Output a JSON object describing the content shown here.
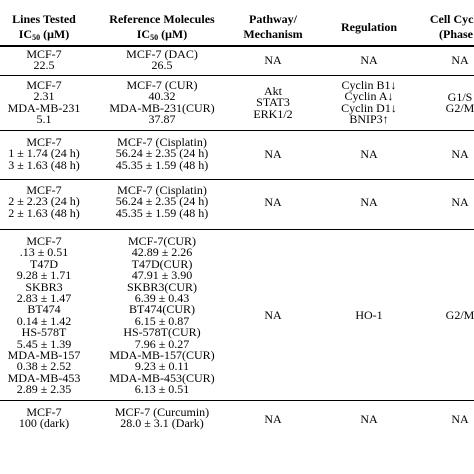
{
  "header": {
    "lines_tested": [
      "Lines Tested",
      "IC50 (μM)"
    ],
    "reference": [
      "Reference Molecules",
      "IC50 (μM)"
    ],
    "pathway": [
      "Pathway/",
      "Mechanism"
    ],
    "regulation": [
      "Regulation"
    ],
    "cell_cycle": [
      "Cell Cycle",
      "(Phase"
    ]
  },
  "rows": [
    {
      "lines": [
        "MCF-7",
        "22.5"
      ],
      "reference": [
        "MCF-7 (DAC)",
        "26.5"
      ],
      "pathway": [
        "NA"
      ],
      "regulation": [
        "NA"
      ],
      "cell_cycle": [
        "NA"
      ]
    },
    {
      "lines": [
        "MCF-7",
        "2.31",
        "MDA-MB-231",
        "5.1"
      ],
      "reference": [
        "MCF-7 (CUR)",
        "40.32",
        "MDA-MB-231(CUR)",
        "37.87"
      ],
      "pathway": [
        "Akt",
        "STAT3",
        "ERK1/2"
      ],
      "regulation": [
        "Cyclin B1↓",
        "Cyclin A↓",
        "Cyclin D1↓",
        "BNIP3↑"
      ],
      "cell_cycle": [
        "G1/S",
        "G2/M"
      ]
    },
    {
      "lines": [
        "MCF-7",
        "1 ± 1.74 (24 h)",
        "3 ± 1.63 (48 h)"
      ],
      "reference": [
        "MCF-7 (Cisplatin)",
        "56.24 ± 2.35 (24 h)",
        "45.35 ± 1.59 (48 h)"
      ],
      "pathway": [
        "NA"
      ],
      "regulation": [
        "NA"
      ],
      "cell_cycle": [
        "NA"
      ]
    },
    {
      "lines": [
        "MCF-7",
        "2 ± 2.23 (24 h)",
        "2 ± 1.63 (48 h)"
      ],
      "reference": [
        "MCF-7 (Cisplatin)",
        "56.24 ± 2.35 (24 h)",
        "45.35 ± 1.59 (48 h)"
      ],
      "pathway": [
        "NA"
      ],
      "regulation": [
        "NA"
      ],
      "cell_cycle": [
        "NA"
      ]
    },
    {
      "lines": [
        "MCF-7",
        ".13 ± 0.51",
        "T47D",
        "9.28 ± 1.71",
        "SKBR3",
        "2.83 ± 1.47",
        "BT474",
        "0.14 ± 1.42",
        "HS-578T",
        "5.45 ± 1.39",
        "MDA-MB-157",
        "0.38 ± 2.52",
        "MDA-MB-453",
        "2.89 ± 2.35"
      ],
      "reference": [
        "MCF-7(CUR)",
        "42.89 ± 2.26",
        "T47D(CUR)",
        "47.91 ± 3.90",
        "SKBR3(CUR)",
        "6.39 ± 0.43",
        "BT474(CUR)",
        "6.15 ± 0.87",
        "HS-578T(CUR)",
        "7.96 ± 0.27",
        "MDA-MB-157(CUR)",
        "9.23 ± 0.11",
        "MDA-MB-453(CUR)",
        "6.13 ± 0.51"
      ],
      "pathway": [
        "NA"
      ],
      "regulation": [
        "HO-1"
      ],
      "cell_cycle": [
        "G2/M"
      ]
    },
    {
      "lines": [
        "MCF-7",
        "100 (dark)"
      ],
      "reference": [
        "MCF-7 (Curcumin)",
        "28.0 ± 3.1 (Dark)"
      ],
      "pathway": [
        "NA"
      ],
      "regulation": [
        "NA"
      ],
      "cell_cycle": [
        "NA"
      ]
    }
  ]
}
